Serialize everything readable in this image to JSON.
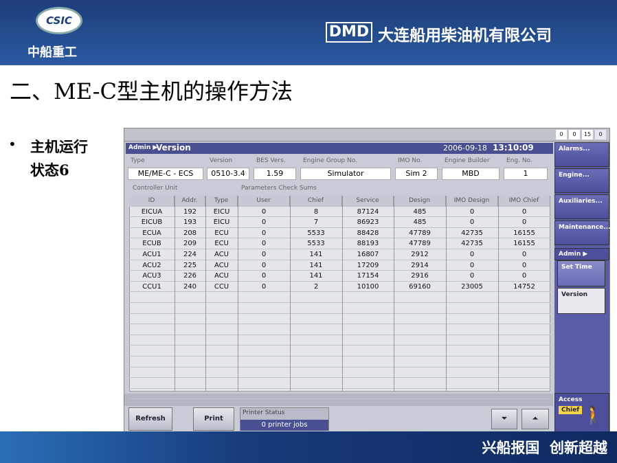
{
  "header": {
    "logo": "CSIC",
    "company_cn": "中船重工",
    "brand": "DMD",
    "company_name": "大连船用柴油机有限公司"
  },
  "title": "二、ME-C型主机的操作方法",
  "bullet": {
    "line1": "主机运行",
    "line2": "状态6"
  },
  "footer": "兴船报国  创新超越",
  "screen": {
    "counters": [
      "0",
      "0",
      "15",
      "0"
    ],
    "breadcrumb": "Admin ▶",
    "page_title": "Version",
    "date": "2006-09-18",
    "time": "13:10:09",
    "info": [
      {
        "label": "Type",
        "value": "ME/ME-C - ECS"
      },
      {
        "label": "Version",
        "value": "0510-3.4"
      },
      {
        "label": "BES Vers.",
        "value": "1.59"
      },
      {
        "label": "Engine Group No.",
        "value": "Simulator"
      },
      {
        "label": "IMO No.",
        "value": "Sim 2"
      },
      {
        "label": "Engine Builder",
        "value": "MBD"
      },
      {
        "label": "Eng. No.",
        "value": "1"
      }
    ],
    "section_controller": "Controller Unit",
    "section_checksums": "Parameters Check Sums",
    "table": {
      "columns": [
        "ID",
        "Addr.",
        "Type",
        "User",
        "Chief",
        "Service",
        "Design",
        "IMO Design",
        "IMO Chief"
      ],
      "rows": [
        [
          "EICUA",
          "192",
          "EICU",
          "0",
          "8",
          "87124",
          "485",
          "0",
          "0"
        ],
        [
          "EICUB",
          "193",
          "EICU",
          "0",
          "7",
          "86923",
          "485",
          "0",
          "0"
        ],
        [
          "ECUA",
          "208",
          "ECU",
          "0",
          "5533",
          "88428",
          "47789",
          "42735",
          "16155"
        ],
        [
          "ECUB",
          "209",
          "ECU",
          "0",
          "5533",
          "88193",
          "47789",
          "42735",
          "16155"
        ],
        [
          "ACU1",
          "224",
          "ACU",
          "0",
          "141",
          "16807",
          "2912",
          "0",
          "0"
        ],
        [
          "ACU2",
          "225",
          "ACU",
          "0",
          "141",
          "17209",
          "2914",
          "0",
          "0"
        ],
        [
          "ACU3",
          "226",
          "ACU",
          "0",
          "141",
          "17154",
          "2916",
          "0",
          "0"
        ],
        [
          "CCU1",
          "240",
          "CCU",
          "0",
          "2",
          "10100",
          "69160",
          "23005",
          "14752"
        ]
      ]
    },
    "menu": [
      "Alarms...",
      "Engine...",
      "Auxiliaries...",
      "Maintenance..."
    ],
    "admin_menu": "Admin ▶",
    "admin_items": [
      "Set Time",
      "Version"
    ],
    "access_label": "Access",
    "access_level": "Chief",
    "buttons": [
      "Refresh",
      "Print"
    ],
    "printer_status_label": "Printer Status",
    "printer_status": "0 printer jobs"
  }
}
